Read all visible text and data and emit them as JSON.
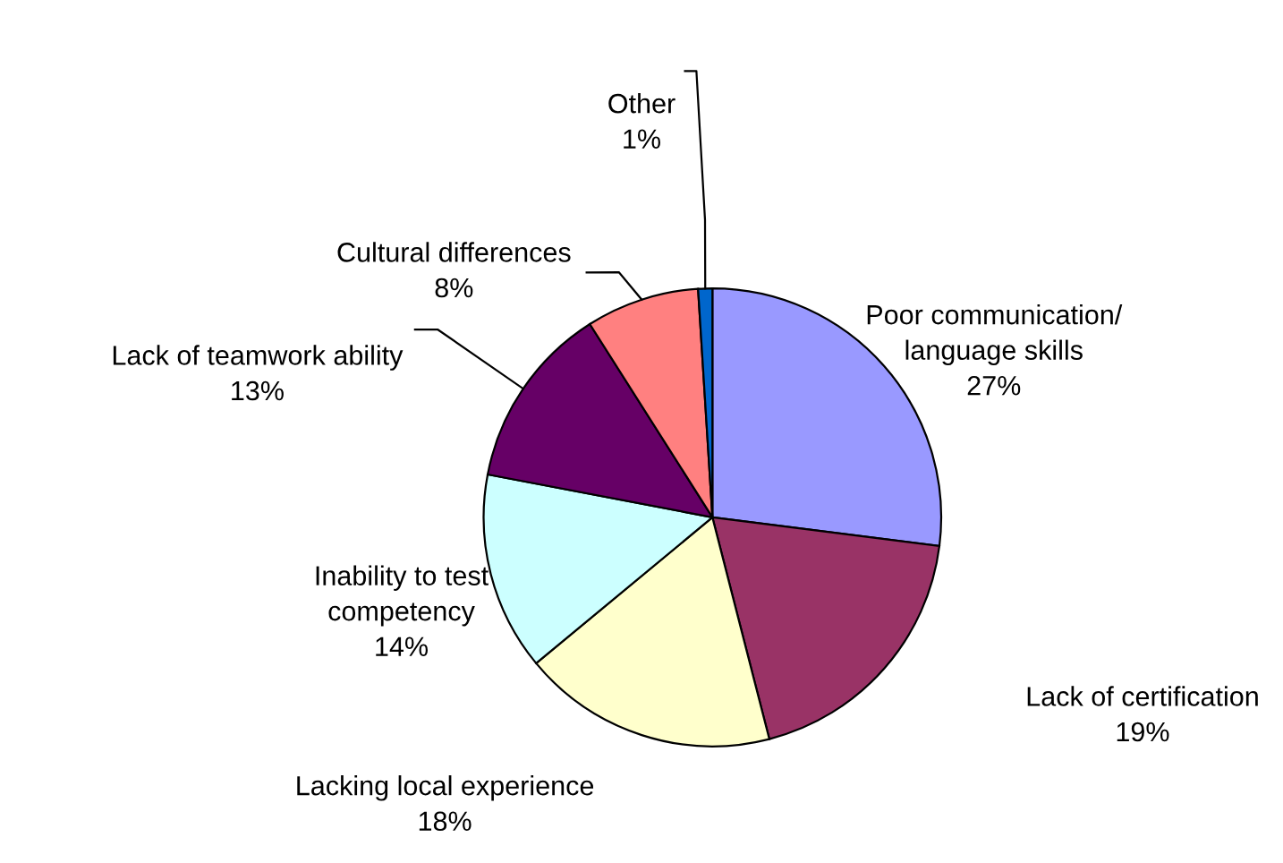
{
  "chart_data": {
    "type": "pie",
    "categories": [
      "Poor communication/\nlanguage skills",
      "Lack of certification",
      "Lacking local experience",
      "Inability to test\ncompetency",
      "Lack of teamwork ability",
      "Cultural differences",
      "Other"
    ],
    "values": [
      27,
      19,
      18,
      14,
      13,
      8,
      1
    ],
    "value_labels": [
      "27%",
      "19%",
      "18%",
      "14%",
      "13%",
      "8%",
      "1%"
    ],
    "colors": [
      "#9999ff",
      "#993366",
      "#ffffcc",
      "#ccffff",
      "#660066",
      "#ff8080",
      "#0066cc"
    ],
    "legend": false
  }
}
